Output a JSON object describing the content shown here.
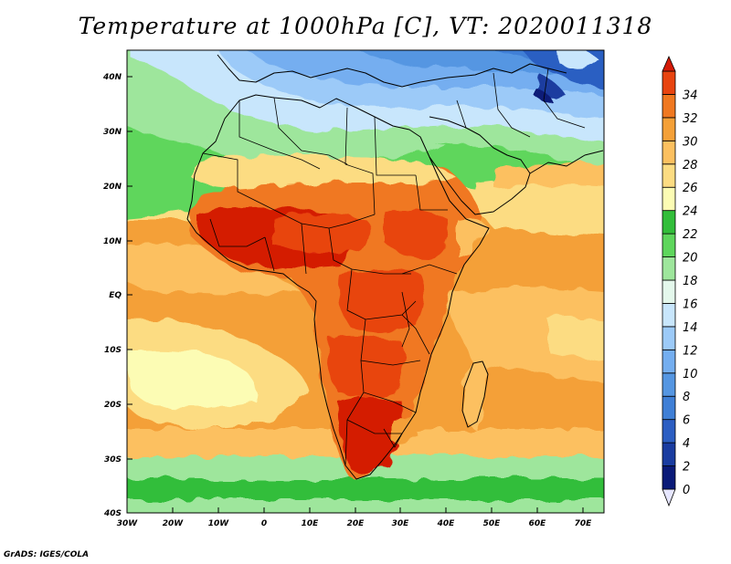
{
  "title": "Temperature at 1000hPa [C], VT: 2020011318",
  "credit": "GrADS: IGES/COLA",
  "map": {
    "projection": "latlon",
    "lon_range": [
      -30,
      75
    ],
    "lat_range": [
      -40,
      45
    ],
    "lat_labels": [
      "40N",
      "30N",
      "20N",
      "10N",
      "EQ",
      "10S",
      "20S",
      "30S",
      "40S"
    ],
    "lat_values": [
      40,
      30,
      20,
      10,
      0,
      -10,
      -20,
      -30,
      -40
    ],
    "lon_labels": [
      "30W",
      "20W",
      "10W",
      "0",
      "10E",
      "20E",
      "30E",
      "40E",
      "50E",
      "60E",
      "70E"
    ],
    "lon_values": [
      -30,
      -20,
      -10,
      0,
      10,
      20,
      30,
      40,
      50,
      60,
      70
    ]
  },
  "colorbar": {
    "labels": [
      "0",
      "2",
      "4",
      "6",
      "8",
      "10",
      "12",
      "14",
      "16",
      "18",
      "20",
      "22",
      "24",
      "26",
      "28",
      "30",
      "32",
      "34"
    ],
    "colors": [
      "#e6e6ff",
      "#0a1a78",
      "#1a3ca0",
      "#2c5ec2",
      "#3f7fd6",
      "#5596e2",
      "#74aef0",
      "#9ccaf8",
      "#c8e6fc",
      "#e4f8ec",
      "#9ee69c",
      "#5ed65c",
      "#32be3a",
      "#fcfcb4",
      "#fcdc82",
      "#fcc060",
      "#f4a038",
      "#f07820",
      "#e84410",
      "#d41a06"
    ]
  }
}
